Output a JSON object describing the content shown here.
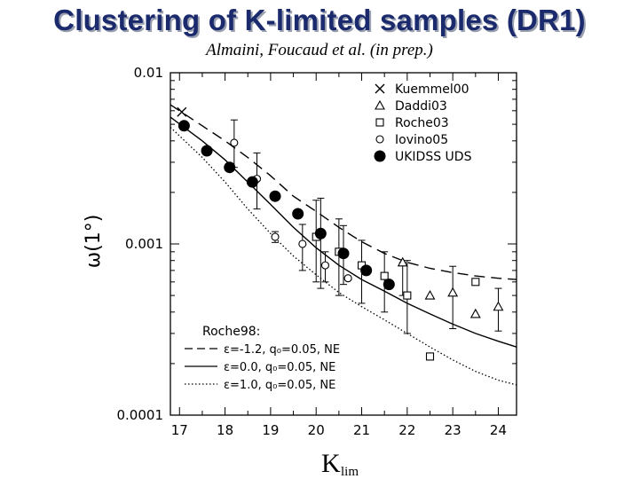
{
  "slide": {
    "title": "Clustering of K-limited samples (DR1)",
    "subtitle": "Almaini, Foucaud et al. (in prep.)"
  },
  "chart_data": {
    "type": "scatter",
    "xlabel": "K",
    "xlabel_sub": "lim",
    "ylabel": "ω(1°)",
    "xlim": [
      16.8,
      24.4
    ],
    "ylim": [
      0.0001,
      0.01
    ],
    "yscale": "log",
    "xticks": [
      17,
      18,
      19,
      20,
      21,
      22,
      23,
      24
    ],
    "xtick_labels": [
      "17",
      "18",
      "19",
      "20",
      "21",
      "22",
      "23",
      "24"
    ],
    "yticks": [
      0.01,
      0.001,
      0.0001
    ],
    "ytick_labels": [
      "0.01",
      "0.001",
      "0.0001"
    ],
    "legend_position": "top-right",
    "series": [
      {
        "name": "Kuemmel00",
        "marker": "cross",
        "points": [
          {
            "x": 17.05,
            "y": 0.0059
          }
        ]
      },
      {
        "name": "Daddi03",
        "marker": "triangle",
        "points": [
          {
            "x": 21.9,
            "y": 0.00078,
            "yerr_lo": 0.00028,
            "yerr_hi": 0.0
          },
          {
            "x": 22.5,
            "y": 0.0005
          },
          {
            "x": 23.0,
            "y": 0.00052,
            "yerr_lo": 0.0002,
            "yerr_hi": 0.00022
          },
          {
            "x": 23.5,
            "y": 0.00039
          },
          {
            "x": 24.0,
            "y": 0.00043,
            "yerr_lo": 0.00012,
            "yerr_hi": 0.00012
          }
        ]
      },
      {
        "name": "Roche03",
        "marker": "square",
        "points": [
          {
            "x": 20.0,
            "y": 0.0011,
            "yerr_lo": 0.0005,
            "yerr_hi": 0.0007
          },
          {
            "x": 20.5,
            "y": 0.0009,
            "yerr_lo": 0.0004,
            "yerr_hi": 0.0005
          },
          {
            "x": 21.0,
            "y": 0.00075,
            "yerr_lo": 0.0003,
            "yerr_hi": 0.0003
          },
          {
            "x": 21.5,
            "y": 0.00065,
            "yerr_lo": 0.00025,
            "yerr_hi": 0.00025
          },
          {
            "x": 22.0,
            "y": 0.0005,
            "yerr_lo": 0.0002,
            "yerr_hi": 0.0003
          },
          {
            "x": 22.5,
            "y": 0.00022
          },
          {
            "x": 23.5,
            "y": 0.0006
          }
        ]
      },
      {
        "name": "Iovino05",
        "marker": "circle-open",
        "points": [
          {
            "x": 18.2,
            "y": 0.0039,
            "yerr_lo": 0.0011,
            "yerr_hi": 0.0014
          },
          {
            "x": 18.7,
            "y": 0.0024,
            "yerr_lo": 0.0008,
            "yerr_hi": 0.001
          },
          {
            "x": 19.1,
            "y": 0.0011,
            "yerr_lo": 8e-05,
            "yerr_hi": 8e-05
          },
          {
            "x": 19.7,
            "y": 0.001,
            "yerr_lo": 0.0003,
            "yerr_hi": 0.0003
          },
          {
            "x": 20.2,
            "y": 0.00075,
            "yerr_lo": 0.00015,
            "yerr_hi": 0.00015
          },
          {
            "x": 20.7,
            "y": 0.00063
          }
        ]
      },
      {
        "name": "UKIDSS UDS",
        "marker": "circle-filled",
        "points": [
          {
            "x": 17.1,
            "y": 0.0049
          },
          {
            "x": 17.6,
            "y": 0.0035
          },
          {
            "x": 18.1,
            "y": 0.0028
          },
          {
            "x": 18.6,
            "y": 0.0023
          },
          {
            "x": 19.1,
            "y": 0.0019
          },
          {
            "x": 19.6,
            "y": 0.0015
          },
          {
            "x": 20.1,
            "y": 0.00115,
            "yerr_lo": 0.0006,
            "yerr_hi": 0.0007
          },
          {
            "x": 20.6,
            "y": 0.00088,
            "yerr_lo": 0.0003,
            "yerr_hi": 0.0004
          },
          {
            "x": 21.1,
            "y": 0.0007
          },
          {
            "x": 21.6,
            "y": 0.00058
          }
        ]
      }
    ],
    "models": {
      "label": "Roche98:",
      "curves": [
        {
          "name": "ε=-1.2, q₀=0.05, NE",
          "style": "dashed",
          "points": [
            [
              16.8,
              0.0065
            ],
            [
              17.5,
              0.0049
            ],
            [
              18.0,
              0.004
            ],
            [
              18.5,
              0.0032
            ],
            [
              19.0,
              0.0025
            ],
            [
              19.5,
              0.0019
            ],
            [
              20.0,
              0.00155
            ],
            [
              20.5,
              0.00125
            ],
            [
              21.0,
              0.00103
            ],
            [
              21.5,
              0.00088
            ],
            [
              22.0,
              0.00078
            ],
            [
              22.5,
              0.00072
            ],
            [
              23.0,
              0.00068
            ],
            [
              23.5,
              0.00065
            ],
            [
              24.0,
              0.00063
            ],
            [
              24.4,
              0.00062
            ]
          ]
        },
        {
          "name": "ε=0.0, q₀=0.05, NE",
          "style": "solid",
          "points": [
            [
              16.8,
              0.0055
            ],
            [
              17.5,
              0.004
            ],
            [
              18.0,
              0.0031
            ],
            [
              18.5,
              0.0023
            ],
            [
              19.0,
              0.0017
            ],
            [
              19.5,
              0.00125
            ],
            [
              20.0,
              0.00095
            ],
            [
              20.5,
              0.00075
            ],
            [
              21.0,
              0.00062
            ],
            [
              21.5,
              0.00053
            ],
            [
              22.0,
              0.00045
            ],
            [
              22.5,
              0.00039
            ],
            [
              23.0,
              0.00034
            ],
            [
              23.5,
              0.0003
            ],
            [
              24.0,
              0.00027
            ],
            [
              24.4,
              0.00025
            ]
          ]
        },
        {
          "name": "ε=1.0, q₀=0.05, NE",
          "style": "dotted",
          "points": [
            [
              16.8,
              0.0048
            ],
            [
              17.5,
              0.0032
            ],
            [
              18.0,
              0.0023
            ],
            [
              18.5,
              0.0016
            ],
            [
              19.0,
              0.00115
            ],
            [
              19.5,
              0.00085
            ],
            [
              20.0,
              0.00066
            ],
            [
              20.5,
              0.00052
            ],
            [
              21.0,
              0.00043
            ],
            [
              21.5,
              0.00036
            ],
            [
              22.0,
              0.0003
            ],
            [
              22.5,
              0.00025
            ],
            [
              23.0,
              0.00021
            ],
            [
              23.5,
              0.00018
            ],
            [
              24.0,
              0.00016
            ],
            [
              24.4,
              0.00015
            ]
          ]
        }
      ]
    }
  }
}
